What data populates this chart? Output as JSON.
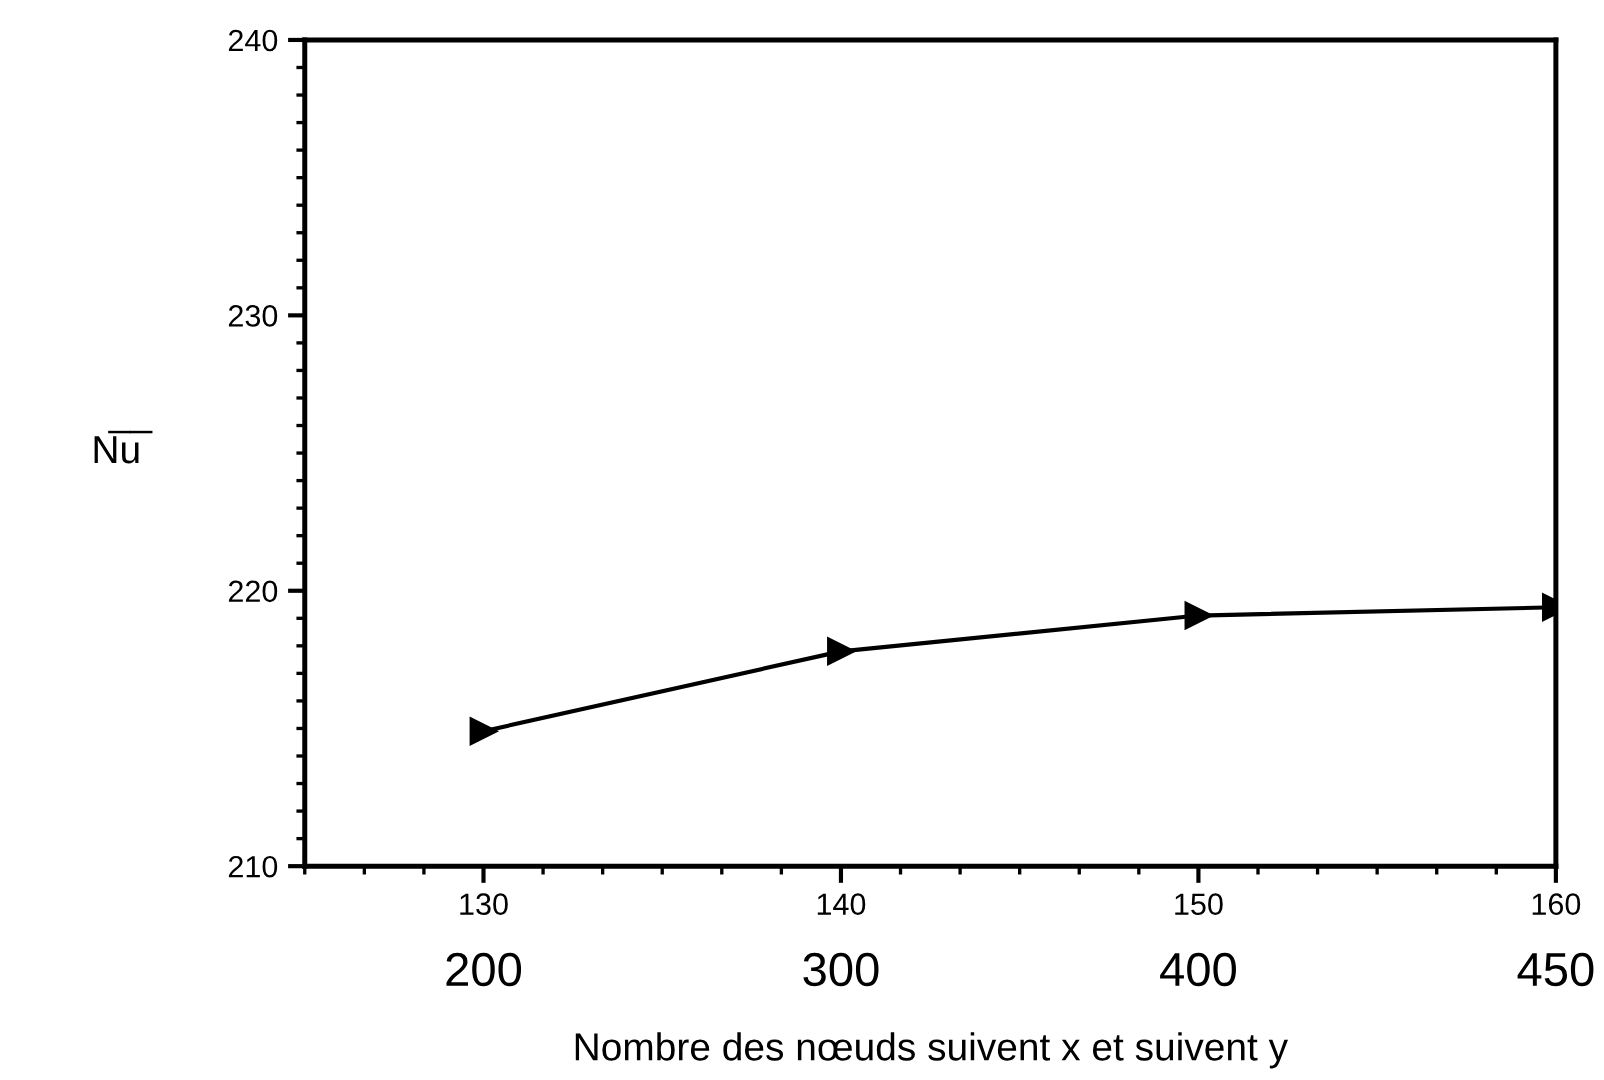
{
  "chart_data": {
    "type": "line",
    "x": [
      130,
      140,
      150,
      160
    ],
    "series": [
      {
        "color": "#000000",
        "values": [
          214.9,
          217.8,
          219.1,
          219.4
        ]
      }
    ],
    "xlabel": "Nombre des nœuds suivent x et suivent y",
    "ylabel": "N̅u̅",
    "xlim": [
      125,
      160
    ],
    "xticks": [
      130,
      140,
      150,
      160
    ],
    "annotations": [
      "200",
      "300",
      "400",
      "450"
    ],
    "ylim": [
      210,
      240
    ],
    "yticks": [
      210,
      220,
      230,
      240
    ],
    "grid": false,
    "legend": false,
    "marker": "triangle",
    "line_style": "solid"
  }
}
